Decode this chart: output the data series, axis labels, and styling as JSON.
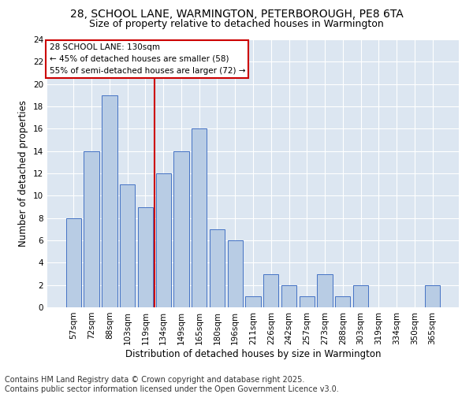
{
  "title_line1": "28, SCHOOL LANE, WARMINGTON, PETERBOROUGH, PE8 6TA",
  "title_line2": "Size of property relative to detached houses in Warmington",
  "xlabel": "Distribution of detached houses by size in Warmington",
  "ylabel": "Number of detached properties",
  "categories": [
    "57sqm",
    "72sqm",
    "88sqm",
    "103sqm",
    "119sqm",
    "134sqm",
    "149sqm",
    "165sqm",
    "180sqm",
    "196sqm",
    "211sqm",
    "226sqm",
    "242sqm",
    "257sqm",
    "273sqm",
    "288sqm",
    "303sqm",
    "319sqm",
    "334sqm",
    "350sqm",
    "365sqm"
  ],
  "values": [
    8,
    14,
    19,
    11,
    9,
    12,
    14,
    16,
    7,
    6,
    1,
    3,
    2,
    1,
    3,
    1,
    2,
    0,
    0,
    0,
    2
  ],
  "bar_color": "#b8cce4",
  "bar_edge_color": "#4472c4",
  "ylim": [
    0,
    24
  ],
  "yticks": [
    0,
    2,
    4,
    6,
    8,
    10,
    12,
    14,
    16,
    18,
    20,
    22,
    24
  ],
  "property_label": "28 SCHOOL LANE: 130sqm",
  "annotation_line1": "← 45% of detached houses are smaller (58)",
  "annotation_line2": "55% of semi-detached houses are larger (72) →",
  "annotation_box_color": "#ffffff",
  "annotation_box_edge_color": "#cc0000",
  "vline_color": "#cc0000",
  "vline_x": 4.5,
  "bg_color": "#dce6f1",
  "footnote": "Contains HM Land Registry data © Crown copyright and database right 2025.\nContains public sector information licensed under the Open Government Licence v3.0.",
  "footnote_fontsize": 7,
  "title1_fontsize": 10,
  "title2_fontsize": 9,
  "xlabel_fontsize": 8.5,
  "ylabel_fontsize": 8.5,
  "tick_fontsize": 7.5,
  "annotation_fontsize": 7.5
}
